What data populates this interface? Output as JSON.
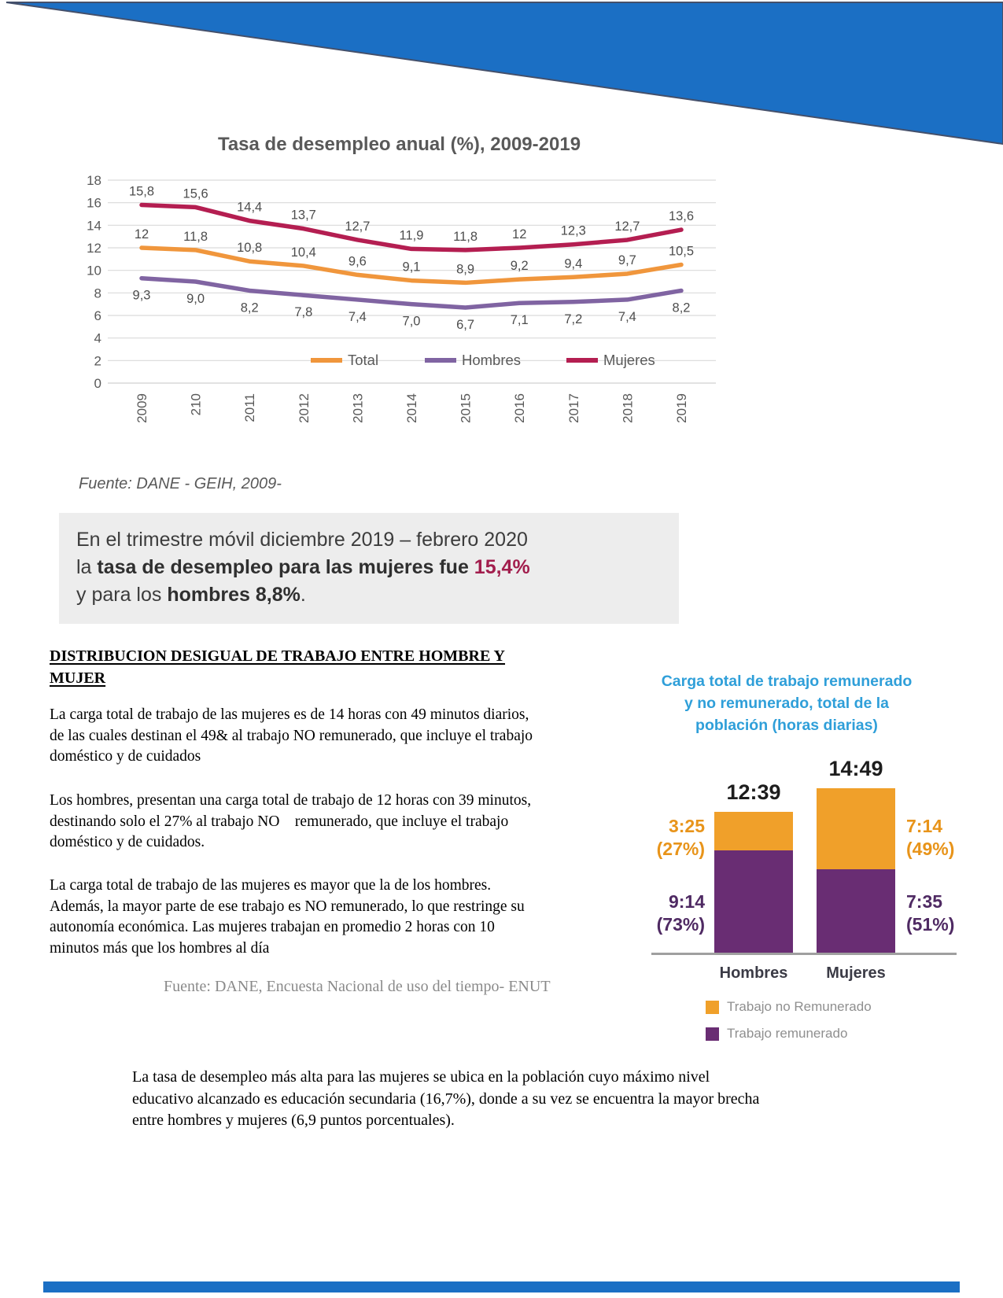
{
  "accents": {
    "banner_blue": "#1B6FC4",
    "highlight_value_color": "#A21E4D"
  },
  "chart_data": [
    {
      "type": "line",
      "title": "Tasa de desempleo anual (%), 2009-2019",
      "source": "Fuente: DANE - GEIH, 2009-",
      "categories": [
        "2009",
        "210",
        "2011",
        "2012",
        "2013",
        "2014",
        "2015",
        "2016",
        "2017",
        "2018",
        "2019"
      ],
      "ylim": [
        0,
        18
      ],
      "ytick_step": 2,
      "grid": "horizontal",
      "legend_position": "bottom-inside",
      "series": [
        {
          "name": "Total",
          "color": "#F0963C",
          "values": [
            12,
            11.8,
            10.8,
            10.4,
            9.6,
            9.1,
            8.9,
            9.2,
            9.4,
            9.7,
            10.5
          ],
          "labels": [
            "12",
            "11,8",
            "10,8",
            "10,4",
            "9,6",
            "9,1",
            "8,9",
            "9,2",
            "9,4",
            "9,7",
            "10,5"
          ]
        },
        {
          "name": "Hombres",
          "color": "#8064A2",
          "values": [
            9.3,
            9.0,
            8.2,
            7.8,
            7.4,
            7.0,
            6.7,
            7.1,
            7.2,
            7.4,
            8.2
          ],
          "labels": [
            "9,3",
            "9,0",
            "8,2",
            "7,8",
            "7,4",
            "7,0",
            "6,7",
            "7,1",
            "7,2",
            "7,4",
            "8,2"
          ]
        },
        {
          "name": "Mujeres",
          "color": "#B41E51",
          "values": [
            15.8,
            15.6,
            14.4,
            13.7,
            12.7,
            11.9,
            11.8,
            12,
            12.3,
            12.7,
            13.6
          ],
          "labels": [
            "15,8",
            "15,6",
            "14,4",
            "13,7",
            "12,7",
            "11,9",
            "11,8",
            "12",
            "12,3",
            "12,7",
            "13,6"
          ]
        }
      ]
    },
    {
      "type": "stacked-bar",
      "title_lines": [
        "Carga total de trabajo remunerado",
        "y no remunerado, total de la",
        "población (horas diarias)"
      ],
      "title_color": "#2F9FD9",
      "categories": [
        "Hombres",
        "Mujeres"
      ],
      "totals": [
        "12:39",
        "14:49"
      ],
      "series": [
        {
          "name": "Trabajo no Remunerado",
          "color": "#F0A02A",
          "label_color": "#E8941A",
          "values_min": [
            205,
            434
          ],
          "time_labels": [
            "3:25",
            "7:14"
          ],
          "pct_labels": [
            "(27%)",
            "(49%)"
          ]
        },
        {
          "name": "Trabajo remunerado",
          "color": "#692D73",
          "label_color": "#4F2A63",
          "values_min": [
            554,
            455
          ],
          "time_labels": [
            "9:14",
            "7:35"
          ],
          "pct_labels": [
            "(73%)",
            "(51%)"
          ]
        }
      ],
      "legend": [
        {
          "label": "Trabajo no Remunerado",
          "color": "#F0A02A"
        },
        {
          "label": "Trabajo remunerado",
          "color": "#692D73"
        }
      ]
    }
  ],
  "highlight": {
    "line1": "En el trimestre móvil diciembre 2019 – febrero 2020",
    "line2_prefix": "la ",
    "line2_bold": "tasa de desempleo para las mujeres fue ",
    "line2_value": "15,4%",
    "line3_prefix": "y para los ",
    "line3_bold": "hombres 8,8%",
    "line3_suffix": "."
  },
  "article": {
    "heading": [
      "DISTRIBUCION DESIGUAL DE TRABAJO ENTRE HOMBRE Y",
      "MUJER"
    ],
    "p1": [
      "La carga total de trabajo de las mujeres es de 14 horas con 49 minutos diarios,",
      "de las cuales destinan el 49& al trabajo NO remunerado, que incluye el trabajo",
      "doméstico y de cuidados"
    ],
    "p2": [
      "Los hombres, presentan una carga total de trabajo de 12 horas con 39 minutos,",
      "destinando solo el 27% al trabajo NO    remunerado, que incluye el trabajo",
      "doméstico y de cuidados."
    ],
    "p3": [
      "La carga total de trabajo de las mujeres es mayor que la de los hombres.",
      "Además, la mayor parte de ese trabajo es NO remunerado, lo que restringe su",
      "autonomía económica. Las mujeres trabajan en promedio 2 horas con 10",
      "minutos más que los hombres al día"
    ],
    "source": "Fuente: DANE, Encuesta Nacional de uso del tiempo- ENUT",
    "closing": [
      "La tasa de desempleo más alta para las mujeres se ubica en la población cuyo máximo nivel",
      "educativo alcanzado es educación secundaria (16,7%), donde a su vez se encuentra la mayor brecha",
      "entre hombres y mujeres (6,9 puntos porcentuales)."
    ]
  }
}
